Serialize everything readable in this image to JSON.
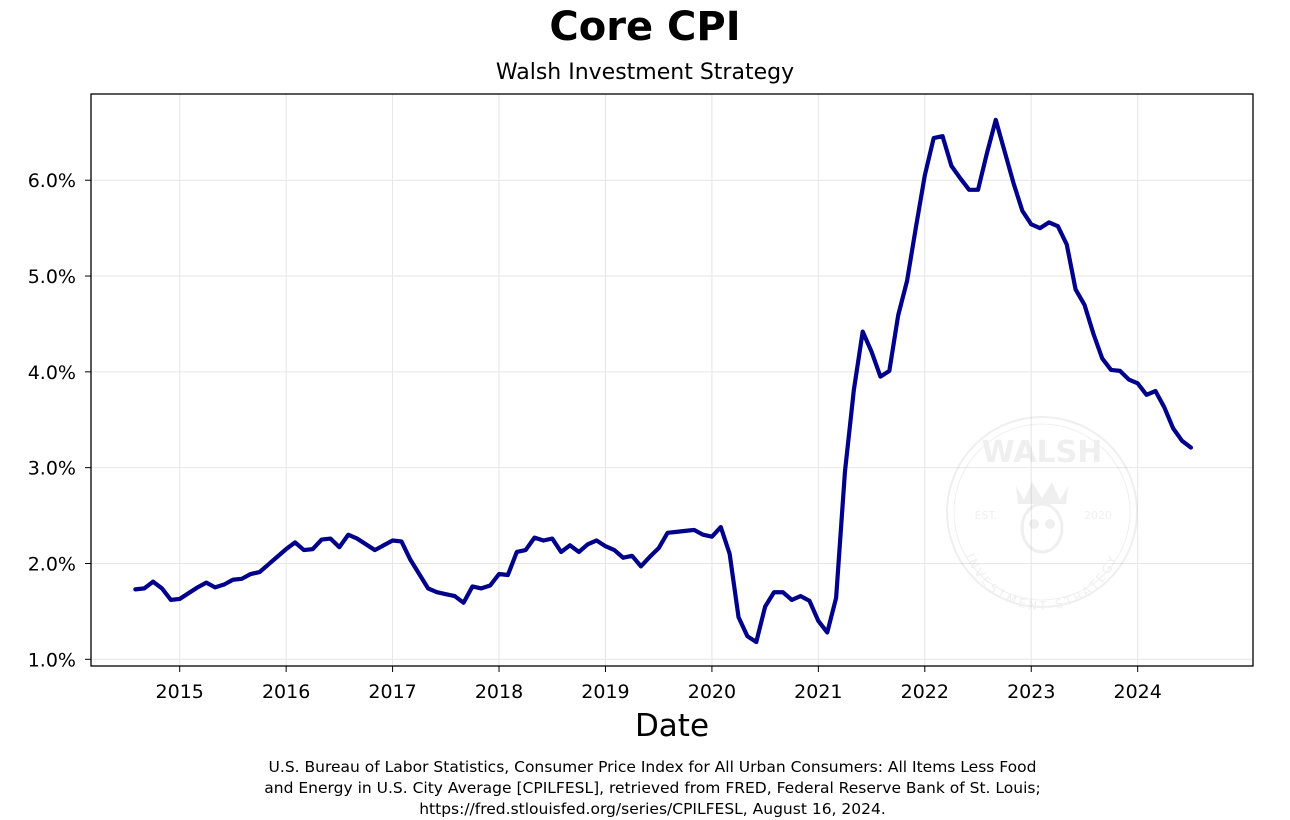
{
  "chart_data": {
    "type": "line",
    "title": "Core CPI",
    "subtitle": "Walsh Investment Strategy",
    "xlabel": "Date",
    "ylabel": "",
    "x_ticks": [
      "2015",
      "2016",
      "2017",
      "2018",
      "2019",
      "2020",
      "2021",
      "2022",
      "2023",
      "2024"
    ],
    "y_ticks": [
      "1.0%",
      "2.0%",
      "3.0%",
      "4.0%",
      "5.0%",
      "6.0%"
    ],
    "xlim": [
      "2014-03",
      "2025-02"
    ],
    "ylim": [
      0.93,
      6.9
    ],
    "grid": true,
    "legend": "none",
    "line_color": "#00008B",
    "series": [
      {
        "x": [
          "2014-08",
          "2014-09",
          "2014-10",
          "2014-11",
          "2014-12",
          "2015-01",
          "2015-02",
          "2015-03",
          "2015-04",
          "2015-05",
          "2015-06",
          "2015-07",
          "2015-08",
          "2015-09",
          "2015-10",
          "2015-11",
          "2015-12",
          "2016-01",
          "2016-02",
          "2016-03",
          "2016-04",
          "2016-05",
          "2016-06",
          "2016-07",
          "2016-08",
          "2016-09",
          "2016-10",
          "2016-11",
          "2016-12",
          "2017-01",
          "2017-02",
          "2017-03",
          "2017-04",
          "2017-05",
          "2017-06",
          "2017-07",
          "2017-08",
          "2017-09",
          "2017-10",
          "2017-11",
          "2017-12",
          "2018-01",
          "2018-02",
          "2018-03",
          "2018-04",
          "2018-05",
          "2018-06",
          "2018-07",
          "2018-08",
          "2018-09",
          "2018-10",
          "2018-11",
          "2018-12",
          "2019-01",
          "2019-02",
          "2019-03",
          "2019-04",
          "2019-05",
          "2019-06",
          "2019-07",
          "2019-08",
          "2019-09",
          "2019-10",
          "2019-11",
          "2019-12",
          "2020-01",
          "2020-02",
          "2020-03",
          "2020-04",
          "2020-05",
          "2020-06",
          "2020-07",
          "2020-08",
          "2020-09",
          "2020-10",
          "2020-11",
          "2020-12",
          "2021-01",
          "2021-02",
          "2021-03",
          "2021-04",
          "2021-05",
          "2021-06",
          "2021-07",
          "2021-08",
          "2021-09",
          "2021-10",
          "2021-11",
          "2021-12",
          "2022-01",
          "2022-02",
          "2022-03",
          "2022-04",
          "2022-05",
          "2022-06",
          "2022-07",
          "2022-08",
          "2022-09",
          "2022-10",
          "2022-11",
          "2022-12",
          "2023-01",
          "2023-02",
          "2023-03",
          "2023-04",
          "2023-05",
          "2023-06",
          "2023-07",
          "2023-08",
          "2023-09",
          "2023-10",
          "2023-11",
          "2023-12",
          "2024-01",
          "2024-02",
          "2024-03",
          "2024-04",
          "2024-05",
          "2024-06",
          "2024-07"
        ],
        "values": [
          1.73,
          1.74,
          1.81,
          1.74,
          1.62,
          1.63,
          1.69,
          1.75,
          1.8,
          1.75,
          1.78,
          1.83,
          1.84,
          1.89,
          1.91,
          1.99,
          2.07,
          2.15,
          2.22,
          2.14,
          2.15,
          2.25,
          2.26,
          2.17,
          2.3,
          2.26,
          2.2,
          2.14,
          2.19,
          2.24,
          2.23,
          2.04,
          1.89,
          1.74,
          1.7,
          1.68,
          1.66,
          1.59,
          1.76,
          1.74,
          1.77,
          1.89,
          1.88,
          2.12,
          2.14,
          2.27,
          2.24,
          2.26,
          2.12,
          2.19,
          2.12,
          2.2,
          2.24,
          2.18,
          2.14,
          2.06,
          2.08,
          1.97,
          2.07,
          2.16,
          2.32,
          2.33,
          2.34,
          2.35,
          2.3,
          2.28,
          2.38,
          2.1,
          1.44,
          1.24,
          1.18,
          1.55,
          1.7,
          1.7,
          1.62,
          1.66,
          1.61,
          1.4,
          1.28,
          1.64,
          2.96,
          3.81,
          4.42,
          4.21,
          3.95,
          4.01,
          4.59,
          4.95,
          5.51,
          6.05,
          6.44,
          6.46,
          6.15,
          6.02,
          5.9,
          5.9,
          6.28,
          6.63,
          6.3,
          5.97,
          5.68,
          5.54,
          5.5,
          5.56,
          5.52,
          5.33,
          4.86,
          4.7,
          4.4,
          4.14,
          4.02,
          4.01,
          3.92,
          3.88,
          3.76,
          3.8,
          3.63,
          3.41,
          3.28,
          3.21
        ]
      }
    ]
  },
  "source_note": {
    "line1": "U.S. Bureau of Labor Statistics, Consumer Price Index for All Urban Consumers: All Items Less Food",
    "line2": "and Energy in U.S. City Average [CPILFESL], retrieved from FRED, Federal Reserve Bank of St. Louis;",
    "line3": "https://fred.stlouisfed.org/series/CPILFESL, August 16, 2024."
  },
  "watermark": {
    "name": "WALSH",
    "left_text": "EST.",
    "right_text": "2020",
    "ring_text": "INVESTMENT STRATEGY"
  }
}
